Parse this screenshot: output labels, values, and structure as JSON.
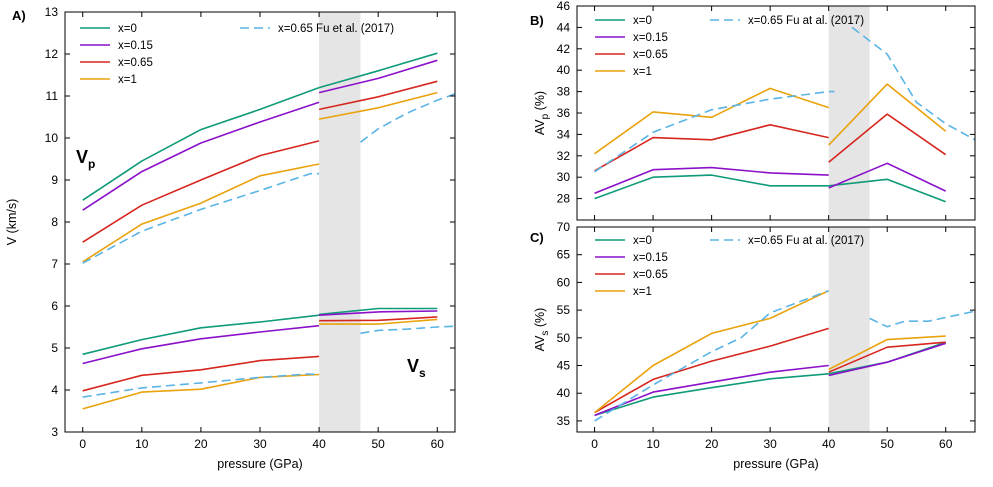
{
  "figure": {
    "colors": {
      "x=0": "#0f9a78",
      "x=0.15": "#8a11c9",
      "x=0.65": "#d6261e",
      "x=1": "#e9a20c",
      "fu": "#5ab4e5",
      "shade": "#e5e5e5"
    }
  },
  "chart_data": [
    {
      "panel": "A)",
      "type": "line",
      "xlabel": "pressure (GPa)",
      "ylabel": "V (km/s)",
      "xlim": [
        -3,
        63
      ],
      "ylim": [
        3,
        13
      ],
      "xticks": [
        "0",
        "10",
        "20",
        "30",
        "40",
        "50",
        "60"
      ],
      "yticks": [
        "3",
        "4",
        "5",
        "6",
        "7",
        "8",
        "9",
        "10",
        "11",
        "12",
        "13"
      ],
      "shaded_region": [
        40,
        47
      ],
      "annotations": [
        {
          "main": "V",
          "sub": "p"
        },
        {
          "main": "V",
          "sub": "s"
        }
      ],
      "legend": [
        "x=0",
        "x=0.15",
        "x=0.65",
        "x=1",
        "x=0.65 Fu et al. (2017)"
      ],
      "series": [
        {
          "name": "x=0",
          "group": "Vp",
          "segments": [
            [
              [
                0,
                8.52
              ],
              [
                10,
                9.45
              ],
              [
                20,
                10.2
              ],
              [
                30,
                10.68
              ],
              [
                40,
                11.2
              ]
            ],
            [
              [
                40,
                11.2
              ],
              [
                50,
                11.6
              ],
              [
                60,
                12.02
              ]
            ]
          ]
        },
        {
          "name": "x=0.15",
          "group": "Vp",
          "segments": [
            [
              [
                0,
                8.28
              ],
              [
                10,
                9.2
              ],
              [
                20,
                9.88
              ],
              [
                30,
                10.38
              ],
              [
                40,
                10.85
              ]
            ],
            [
              [
                40,
                11.08
              ],
              [
                50,
                11.42
              ],
              [
                60,
                11.85
              ]
            ]
          ]
        },
        {
          "name": "x=0.65",
          "group": "Vp",
          "segments": [
            [
              [
                0,
                7.52
              ],
              [
                10,
                8.4
              ],
              [
                20,
                9.0
              ],
              [
                30,
                9.58
              ],
              [
                40,
                9.93
              ]
            ],
            [
              [
                40,
                10.68
              ],
              [
                50,
                10.98
              ],
              [
                60,
                11.35
              ]
            ]
          ]
        },
        {
          "name": "x=1",
          "group": "Vp",
          "segments": [
            [
              [
                0,
                7.05
              ],
              [
                10,
                7.95
              ],
              [
                20,
                8.45
              ],
              [
                30,
                9.1
              ],
              [
                40,
                9.38
              ]
            ],
            [
              [
                40,
                10.45
              ],
              [
                50,
                10.72
              ],
              [
                60,
                11.08
              ]
            ]
          ]
        },
        {
          "name": "x=0.65 Fu et al. (2017)",
          "group": "Vp",
          "dashed": true,
          "segments": [
            [
              [
                0,
                7.02
              ],
              [
                10,
                7.78
              ],
              [
                20,
                8.3
              ],
              [
                30,
                8.75
              ],
              [
                38.5,
                9.15
              ],
              [
                40,
                9.15
              ]
            ],
            [
              [
                47,
                9.9
              ],
              [
                50,
                10.22
              ],
              [
                55,
                10.6
              ],
              [
                60,
                10.9
              ],
              [
                63,
                11.05
              ]
            ]
          ]
        },
        {
          "name": "x=0",
          "group": "Vs",
          "segments": [
            [
              [
                0,
                4.85
              ],
              [
                10,
                5.2
              ],
              [
                20,
                5.48
              ],
              [
                30,
                5.62
              ],
              [
                40,
                5.78
              ]
            ],
            [
              [
                40,
                5.8
              ],
              [
                50,
                5.94
              ],
              [
                60,
                5.94
              ]
            ]
          ]
        },
        {
          "name": "x=0.15",
          "group": "Vs",
          "segments": [
            [
              [
                0,
                4.63
              ],
              [
                10,
                4.98
              ],
              [
                20,
                5.22
              ],
              [
                30,
                5.38
              ],
              [
                40,
                5.53
              ]
            ],
            [
              [
                40,
                5.78
              ],
              [
                50,
                5.86
              ],
              [
                60,
                5.88
              ]
            ]
          ]
        },
        {
          "name": "x=0.65",
          "group": "Vs",
          "segments": [
            [
              [
                0,
                3.98
              ],
              [
                10,
                4.35
              ],
              [
                20,
                4.48
              ],
              [
                30,
                4.7
              ],
              [
                40,
                4.8
              ]
            ],
            [
              [
                40,
                5.65
              ],
              [
                50,
                5.66
              ],
              [
                60,
                5.74
              ]
            ]
          ]
        },
        {
          "name": "x=1",
          "group": "Vs",
          "segments": [
            [
              [
                0,
                3.55
              ],
              [
                10,
                3.95
              ],
              [
                20,
                4.02
              ],
              [
                30,
                4.3
              ],
              [
                40,
                4.37
              ]
            ],
            [
              [
                40,
                5.57
              ],
              [
                50,
                5.57
              ],
              [
                60,
                5.68
              ]
            ]
          ]
        },
        {
          "name": "x=0.65 Fu et al. (2017)",
          "group": "Vs",
          "dashed": true,
          "segments": [
            [
              [
                0,
                3.83
              ],
              [
                10,
                4.05
              ],
              [
                20,
                4.17
              ],
              [
                30,
                4.3
              ],
              [
                38,
                4.38
              ],
              [
                40,
                4.37
              ]
            ],
            [
              [
                47,
                5.35
              ],
              [
                50,
                5.42
              ],
              [
                55,
                5.45
              ],
              [
                60,
                5.5
              ],
              [
                63,
                5.52
              ]
            ]
          ]
        }
      ]
    },
    {
      "panel": "B)",
      "type": "line",
      "xlabel": "",
      "ylabel": {
        "main": "AV",
        "sub": "p",
        "rest": " (%)"
      },
      "xlim": [
        -3,
        65
      ],
      "ylim": [
        26,
        46
      ],
      "xticks": [
        "",
        "",
        "",
        "",
        "",
        "",
        ""
      ],
      "yticks": [
        "28",
        "30",
        "32",
        "34",
        "36",
        "38",
        "40",
        "42",
        "44",
        "46"
      ],
      "shaded_region": [
        40,
        47
      ],
      "legend": [
        "x=0",
        "x=0.15",
        "x=0.65",
        "x=1",
        "x=0.65 Fu at al. (2017)"
      ],
      "series": [
        {
          "name": "x=0",
          "segments": [
            [
              [
                0,
                28.0
              ],
              [
                10,
                30.0
              ],
              [
                20,
                30.2
              ],
              [
                30,
                29.2
              ],
              [
                40,
                29.2
              ]
            ],
            [
              [
                40,
                29.2
              ],
              [
                50,
                29.8
              ],
              [
                60,
                27.7
              ]
            ]
          ]
        },
        {
          "name": "x=0.15",
          "segments": [
            [
              [
                0,
                28.5
              ],
              [
                10,
                30.7
              ],
              [
                20,
                30.9
              ],
              [
                30,
                30.4
              ],
              [
                40,
                30.2
              ]
            ],
            [
              [
                40,
                29.0
              ],
              [
                50,
                31.3
              ],
              [
                60,
                28.7
              ]
            ]
          ]
        },
        {
          "name": "x=0.65",
          "segments": [
            [
              [
                0,
                30.6
              ],
              [
                10,
                33.7
              ],
              [
                20,
                33.5
              ],
              [
                30,
                34.9
              ],
              [
                40,
                33.7
              ]
            ],
            [
              [
                40,
                31.4
              ],
              [
                50,
                35.9
              ],
              [
                60,
                32.1
              ]
            ]
          ]
        },
        {
          "name": "x=1",
          "segments": [
            [
              [
                0,
                32.2
              ],
              [
                10,
                36.1
              ],
              [
                20,
                35.6
              ],
              [
                30,
                38.3
              ],
              [
                40,
                36.5
              ]
            ],
            [
              [
                40,
                33.0
              ],
              [
                50,
                38.7
              ],
              [
                60,
                34.3
              ]
            ]
          ]
        },
        {
          "name": "x=0.65 Fu at al. (2017)",
          "dashed": true,
          "segments": [
            [
              [
                0,
                30.5
              ],
              [
                10,
                34.2
              ],
              [
                20,
                36.3
              ],
              [
                30,
                37.3
              ],
              [
                40,
                38.0
              ],
              [
                41,
                38.0
              ]
            ],
            [
              [
                44,
                44.0
              ],
              [
                50,
                41.5
              ],
              [
                55,
                37.0
              ],
              [
                60,
                35.0
              ],
              [
                65,
                33.5
              ]
            ]
          ]
        }
      ]
    },
    {
      "panel": "C)",
      "type": "line",
      "xlabel": "pressure (GPa)",
      "ylabel": {
        "main": "AV",
        "sub": "s",
        "rest": " (%)"
      },
      "xlim": [
        -3,
        65
      ],
      "ylim": [
        33,
        70
      ],
      "xticks": [
        "0",
        "10",
        "20",
        "30",
        "40",
        "50",
        "60"
      ],
      "yticks": [
        "35",
        "40",
        "45",
        "50",
        "55",
        "60",
        "65",
        "70"
      ],
      "shaded_region": [
        40,
        47
      ],
      "legend": [
        "x=0",
        "x=0.15",
        "x=0.65",
        "x=1",
        "x=0.65 Fu at al. (2017)"
      ],
      "series": [
        {
          "name": "x=0",
          "segments": [
            [
              [
                0,
                36.0
              ],
              [
                10,
                39.3
              ],
              [
                20,
                41.0
              ],
              [
                30,
                42.6
              ],
              [
                40,
                43.5
              ]
            ],
            [
              [
                40,
                43.5
              ],
              [
                50,
                45.6
              ],
              [
                60,
                49.2
              ]
            ]
          ]
        },
        {
          "name": "x=0.15",
          "segments": [
            [
              [
                0,
                36.0
              ],
              [
                10,
                40.2
              ],
              [
                20,
                42.0
              ],
              [
                30,
                43.8
              ],
              [
                40,
                45.0
              ]
            ],
            [
              [
                40,
                43.2
              ],
              [
                50,
                45.6
              ],
              [
                60,
                49.0
              ]
            ]
          ]
        },
        {
          "name": "x=0.65",
          "segments": [
            [
              [
                0,
                36.5
              ],
              [
                10,
                42.5
              ],
              [
                20,
                45.8
              ],
              [
                30,
                48.5
              ],
              [
                40,
                51.7
              ]
            ],
            [
              [
                40,
                43.8
              ],
              [
                50,
                48.3
              ],
              [
                60,
                49.2
              ]
            ]
          ]
        },
        {
          "name": "x=1",
          "segments": [
            [
              [
                0,
                36.5
              ],
              [
                10,
                45.0
              ],
              [
                20,
                50.8
              ],
              [
                30,
                53.5
              ],
              [
                40,
                58.5
              ]
            ],
            [
              [
                40,
                44.3
              ],
              [
                50,
                49.7
              ],
              [
                60,
                50.3
              ]
            ]
          ]
        },
        {
          "name": "x=0.65 Fu at al. (2017)",
          "dashed": true,
          "segments": [
            [
              [
                0,
                35.0
              ],
              [
                10,
                41.5
              ],
              [
                20,
                47.5
              ],
              [
                25,
                50.0
              ],
              [
                30,
                54.5
              ],
              [
                35,
                56.5
              ],
              [
                40,
                58.5
              ]
            ],
            [
              [
                47,
                53.5
              ],
              [
                50,
                52.0
              ],
              [
                53,
                53.0
              ],
              [
                57,
                53.0
              ],
              [
                65,
                54.8
              ]
            ]
          ]
        }
      ]
    }
  ]
}
